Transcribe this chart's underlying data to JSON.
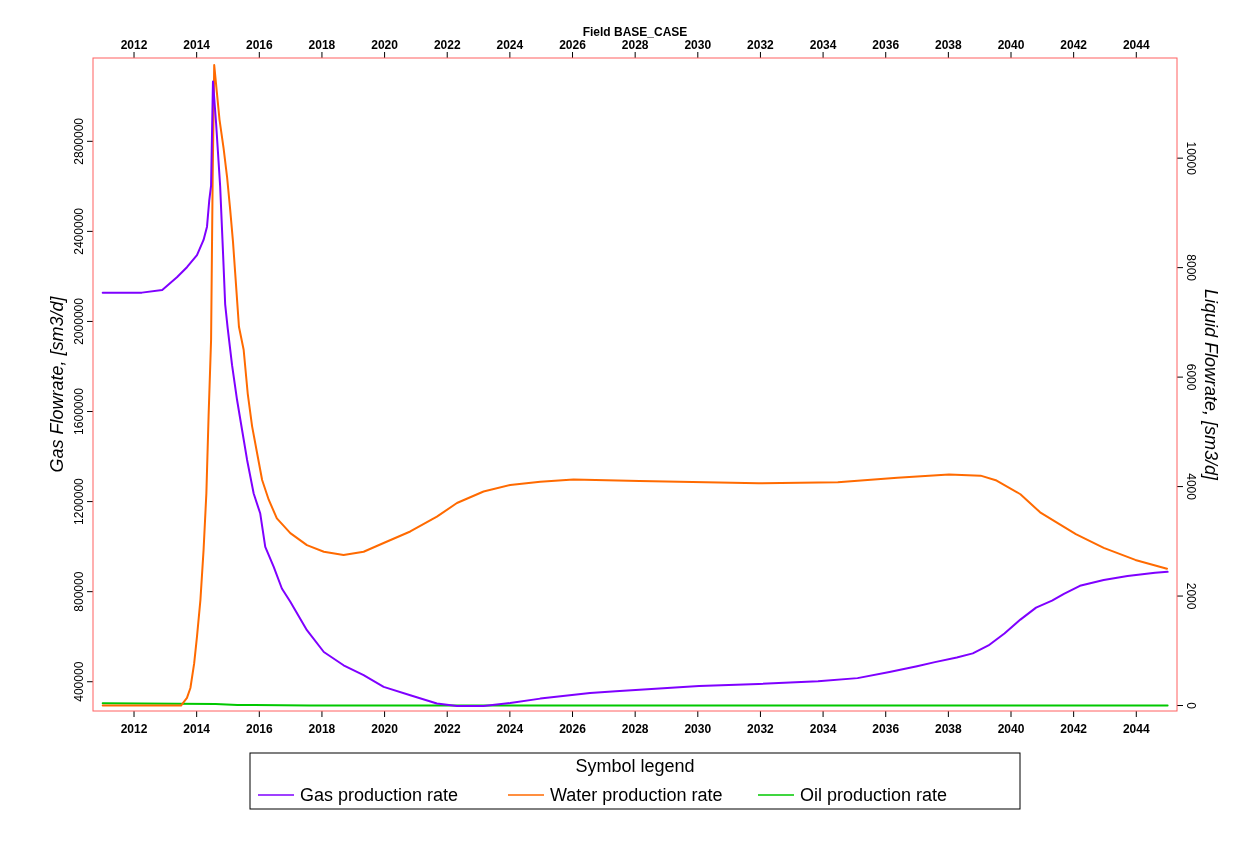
{
  "chart_data": {
    "type": "line",
    "title": "Field BASE_CASE",
    "ylabel": "Gas Flowrate, [sm3/d]",
    "y2label": "Liquid Flowrate, [sm3/d]",
    "legend_title": "Symbol legend",
    "legend": "bottom",
    "xlim": [
      2010.69,
      2045.3
    ],
    "xticks": [
      2012,
      2014,
      2016,
      2018,
      2020,
      2022,
      2024,
      2026,
      2028,
      2030,
      2032,
      2034,
      2036,
      2038,
      2040,
      2042,
      2044
    ],
    "x2lim": [
      2010.69,
      2045.3
    ],
    "x2ticks": [
      2012,
      2014,
      2016,
      2018,
      2020,
      2022,
      2024,
      2026,
      2028,
      2030,
      2032,
      2034,
      2036,
      2038,
      2040,
      2042,
      2044
    ],
    "ylim": [
      270000,
      3170000
    ],
    "yticks": [
      400000,
      800000,
      1200000,
      1600000,
      2000000,
      2400000,
      2800000
    ],
    "y2lim": [
      -100,
      11830
    ],
    "y2ticks": [
      0,
      2000,
      4000,
      6000,
      8000,
      10000
    ],
    "series": [
      {
        "name": "Gas production rate",
        "color": "#7f00ff",
        "x": [
          2011.0,
          2012.25,
          2012.9,
          2013.37,
          2013.69,
          2014.01,
          2014.22,
          2014.33,
          2014.4,
          2014.46,
          2014.52,
          2014.62,
          2014.75,
          2014.84,
          2014.91,
          2014.99,
          2015.13,
          2015.29,
          2015.45,
          2015.61,
          2015.82,
          2016.03,
          2016.19,
          2016.46,
          2016.72,
          2016.99,
          2017.52,
          2018.06,
          2018.69,
          2019.33,
          2019.97,
          2020.82,
          2021.67,
          2022.31,
          2023.16,
          2024.01,
          2024.97,
          2026.56,
          2027.38,
          2030.04,
          2031.94,
          2033.84,
          2035.1,
          2036.12,
          2037.0,
          2037.57,
          2038.27,
          2038.78,
          2039.28,
          2039.79,
          2040.3,
          2040.8,
          2041.31,
          2041.69,
          2042.2,
          2042.96,
          2043.72,
          2044.6,
          2045.0
        ],
        "values": [
          2128000,
          2128000,
          2140000,
          2196000,
          2241000,
          2295000,
          2362000,
          2421000,
          2535000,
          2603000,
          3066000,
          2880000,
          2600000,
          2310000,
          2076000,
          1970000,
          1806000,
          1651000,
          1518000,
          1385000,
          1236000,
          1147000,
          999000,
          910000,
          814000,
          755000,
          629000,
          532000,
          473000,
          429000,
          377000,
          340000,
          303000,
          292000,
          292000,
          306000,
          325000,
          350000,
          358000,
          381000,
          390000,
          402000,
          416000,
          443000,
          469000,
          487000,
          508000,
          526000,
          561000,
          614000,
          676000,
          729000,
          760000,
          790000,
          826000,
          852000,
          870000,
          884000,
          888000
        ]
      },
      {
        "name": "Water production rate",
        "color": "#ff6a00",
        "axis": "y2",
        "x": [
          2011.0,
          2013.5,
          2013.69,
          2013.8,
          2013.92,
          2014.01,
          2014.12,
          2014.22,
          2014.31,
          2014.38,
          2014.46,
          2014.51,
          2014.56,
          2014.73,
          2014.86,
          2014.97,
          2015.07,
          2015.16,
          2015.23,
          2015.35,
          2015.5,
          2015.63,
          2015.77,
          2015.93,
          2016.09,
          2016.3,
          2016.56,
          2016.99,
          2017.52,
          2018.06,
          2018.69,
          2019.33,
          2019.97,
          2020.82,
          2021.67,
          2022.31,
          2023.16,
          2024.01,
          2024.97,
          2026.03,
          2028.14,
          2031.94,
          2034.47,
          2036.37,
          2038.02,
          2039.03,
          2039.54,
          2040.3,
          2040.93,
          2041.44,
          2042.07,
          2042.96,
          2043.97,
          2044.98
        ],
        "values": [
          0,
          0,
          140,
          320,
          770,
          1260,
          1930,
          2840,
          3880,
          5280,
          6680,
          9600,
          11700,
          10700,
          10180,
          9660,
          9060,
          8470,
          7900,
          6920,
          6500,
          5700,
          5100,
          4610,
          4120,
          3760,
          3420,
          3150,
          2930,
          2810,
          2750,
          2810,
          2970,
          3180,
          3450,
          3700,
          3910,
          4030,
          4090,
          4130,
          4100,
          4060,
          4080,
          4160,
          4220,
          4200,
          4110,
          3860,
          3530,
          3350,
          3130,
          2880,
          2660,
          2500
        ]
      },
      {
        "name": "Oil production rate",
        "color": "#00c800",
        "axis": "y2",
        "x": [
          2011.0,
          2014.6,
          2015.3,
          2017.6,
          2045.0
        ],
        "values": [
          40,
          30,
          10,
          0,
          0
        ]
      }
    ]
  }
}
